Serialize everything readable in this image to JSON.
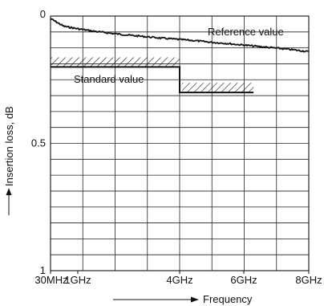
{
  "chart_data": {
    "type": "line",
    "title": "",
    "xlabel": "Frequency",
    "ylabel": "Insertion loss, dB",
    "x_ticks": [
      {
        "value": 0.03,
        "label": "30MHz"
      },
      {
        "value": 1,
        "label": "1GHz"
      },
      {
        "value": 4,
        "label": "4GHz"
      },
      {
        "value": 6,
        "label": "6GHz"
      },
      {
        "value": 8,
        "label": "8GHz"
      }
    ],
    "y_ticks": [
      {
        "value": 0,
        "label": "0"
      },
      {
        "value": 0.5,
        "label": "0.5"
      },
      {
        "value": 1,
        "label": "1"
      }
    ],
    "xlim": [
      0.03,
      8.0
    ],
    "ylim": [
      0,
      1
    ],
    "y_inverted": true,
    "grid": true,
    "series": [
      {
        "name": "Reference value",
        "x": [
          0.03,
          0.5,
          1.0,
          1.5,
          2.0,
          2.5,
          3.0,
          3.5,
          4.0,
          4.5,
          5.0,
          5.5,
          6.0,
          6.5,
          7.0,
          7.5,
          8.0
        ],
        "y": [
          0.01,
          0.04,
          0.05,
          0.06,
          0.068,
          0.075,
          0.081,
          0.087,
          0.092,
          0.097,
          0.103,
          0.108,
          0.114,
          0.12,
          0.126,
          0.132,
          0.14
        ]
      }
    ],
    "standard_limit": {
      "name": "Standard value",
      "x": [
        0.03,
        4.0,
        4.0,
        6.3
      ],
      "y": [
        0.2,
        0.2,
        0.3,
        0.3
      ]
    },
    "annotations": [
      {
        "text": "Reference value"
      },
      {
        "text": "Standard value"
      }
    ]
  }
}
